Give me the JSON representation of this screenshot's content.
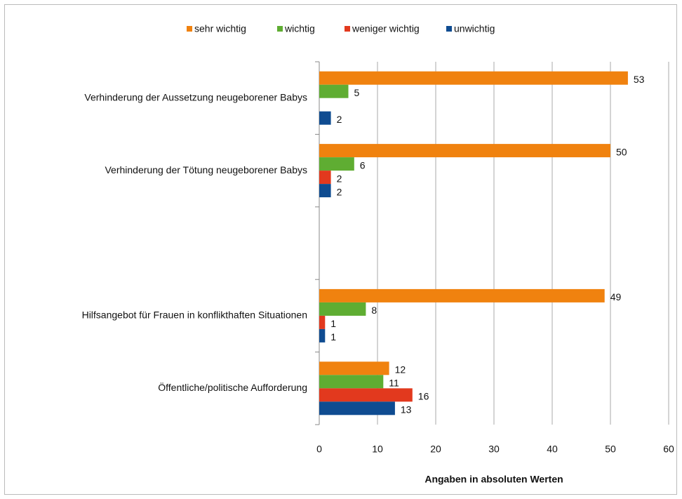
{
  "chart_data": {
    "type": "hbar",
    "xlabel": "Angaben in absoluten Werten",
    "categories": [
      "Verhinderung der Aussetzung neugeborener Babys",
      "Verhinderung der Tötung neugeborener Babys",
      null,
      "Hilfsangebot für Frauen in konflikthaften Situationen",
      "Öffentliche/politische Aufforderung"
    ],
    "series": [
      {
        "name": "sehr wichtig",
        "color": "#f0820f",
        "values": [
          53,
          50,
          null,
          49,
          12
        ]
      },
      {
        "name": "wichtig",
        "color": "#5fad32",
        "values": [
          5,
          6,
          null,
          8,
          11
        ]
      },
      {
        "name": "weniger wichtig",
        "color": "#e2391e",
        "values": [
          null,
          2,
          null,
          1,
          16
        ]
      },
      {
        "name": "unwichtig",
        "color": "#0f4c91",
        "values": [
          2,
          2,
          null,
          1,
          13
        ]
      }
    ],
    "xlim": [
      0,
      60
    ],
    "xticks": [
      0,
      10,
      20,
      30,
      40,
      50,
      60
    ],
    "grid": true,
    "legend": "top"
  }
}
